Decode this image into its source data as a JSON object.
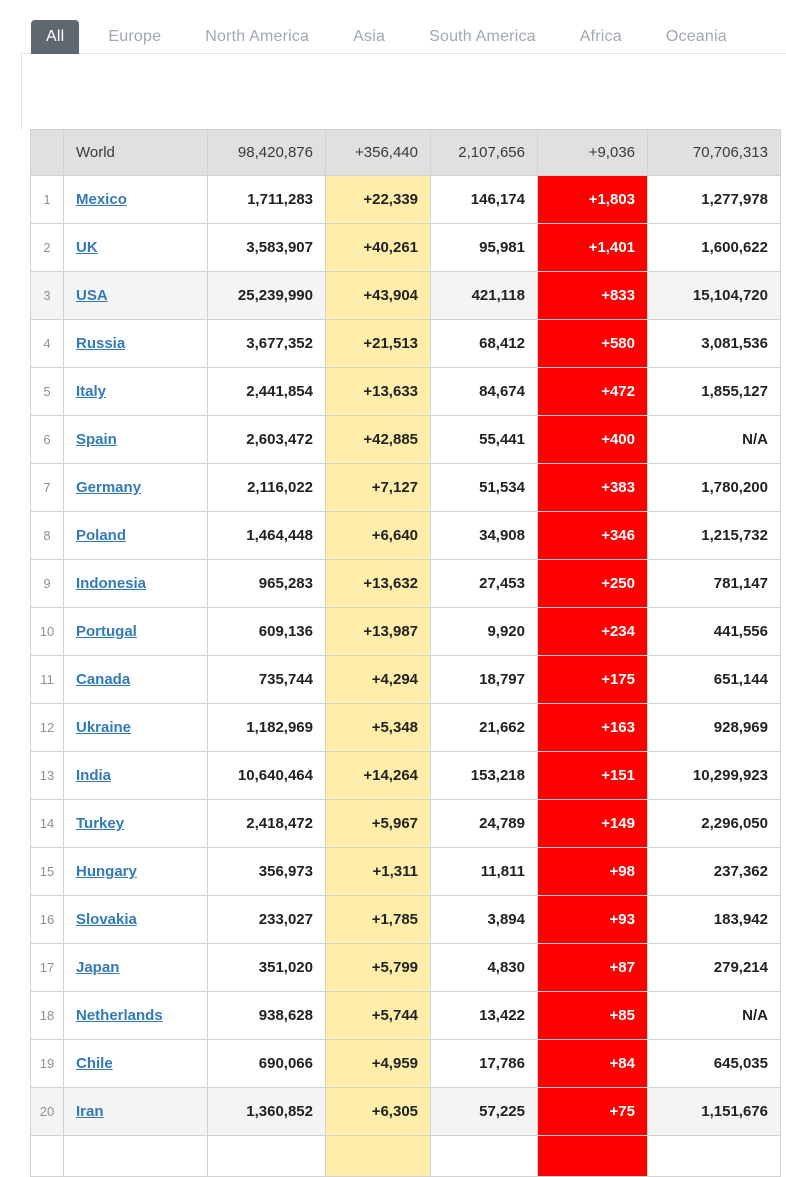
{
  "tabs": [
    {
      "label": "All",
      "active": true
    },
    {
      "label": "Europe",
      "active": false
    },
    {
      "label": "North America",
      "active": false
    },
    {
      "label": "Asia",
      "active": false
    },
    {
      "label": "South America",
      "active": false
    },
    {
      "label": "Africa",
      "active": false
    },
    {
      "label": "Oceania",
      "active": false
    }
  ],
  "colors": {
    "active_tab_bg": "#5e6870",
    "inactive_tab_text": "#a1a8b0",
    "new_cases_bg": "#FFEEAA",
    "new_deaths_bg": "#FF0000",
    "world_row_bg": "#e0e0e0",
    "striped_row_bg": "#f4f4f4",
    "country_link": "#337ab7"
  },
  "table": {
    "columns": [
      "rank",
      "country",
      "total_cases",
      "new_cases",
      "total_deaths",
      "new_deaths",
      "total_recovered"
    ],
    "world": {
      "name": "World",
      "total_cases": "98,420,876",
      "new_cases": "+356,440",
      "total_deaths": "2,107,656",
      "new_deaths": "+9,036",
      "total_recovered": "70,706,313"
    },
    "rows": [
      {
        "rank": "1",
        "country": "Mexico",
        "total_cases": "1,711,283",
        "new_cases": "+22,339",
        "total_deaths": "146,174",
        "new_deaths": "+1,803",
        "total_recovered": "1,277,978",
        "striped": false
      },
      {
        "rank": "2",
        "country": "UK",
        "total_cases": "3,583,907",
        "new_cases": "+40,261",
        "total_deaths": "95,981",
        "new_deaths": "+1,401",
        "total_recovered": "1,600,622",
        "striped": false
      },
      {
        "rank": "3",
        "country": "USA",
        "total_cases": "25,239,990",
        "new_cases": "+43,904",
        "total_deaths": "421,118",
        "new_deaths": "+833",
        "total_recovered": "15,104,720",
        "striped": true
      },
      {
        "rank": "4",
        "country": "Russia",
        "total_cases": "3,677,352",
        "new_cases": "+21,513",
        "total_deaths": "68,412",
        "new_deaths": "+580",
        "total_recovered": "3,081,536",
        "striped": false
      },
      {
        "rank": "5",
        "country": "Italy",
        "total_cases": "2,441,854",
        "new_cases": "+13,633",
        "total_deaths": "84,674",
        "new_deaths": "+472",
        "total_recovered": "1,855,127",
        "striped": false
      },
      {
        "rank": "6",
        "country": "Spain",
        "total_cases": "2,603,472",
        "new_cases": "+42,885",
        "total_deaths": "55,441",
        "new_deaths": "+400",
        "total_recovered": "N/A",
        "striped": false
      },
      {
        "rank": "7",
        "country": "Germany",
        "total_cases": "2,116,022",
        "new_cases": "+7,127",
        "total_deaths": "51,534",
        "new_deaths": "+383",
        "total_recovered": "1,780,200",
        "striped": false
      },
      {
        "rank": "8",
        "country": "Poland",
        "total_cases": "1,464,448",
        "new_cases": "+6,640",
        "total_deaths": "34,908",
        "new_deaths": "+346",
        "total_recovered": "1,215,732",
        "striped": false
      },
      {
        "rank": "9",
        "country": "Indonesia",
        "total_cases": "965,283",
        "new_cases": "+13,632",
        "total_deaths": "27,453",
        "new_deaths": "+250",
        "total_recovered": "781,147",
        "striped": false
      },
      {
        "rank": "10",
        "country": "Portugal",
        "total_cases": "609,136",
        "new_cases": "+13,987",
        "total_deaths": "9,920",
        "new_deaths": "+234",
        "total_recovered": "441,556",
        "striped": false
      },
      {
        "rank": "11",
        "country": "Canada",
        "total_cases": "735,744",
        "new_cases": "+4,294",
        "total_deaths": "18,797",
        "new_deaths": "+175",
        "total_recovered": "651,144",
        "striped": false
      },
      {
        "rank": "12",
        "country": "Ukraine",
        "total_cases": "1,182,969",
        "new_cases": "+5,348",
        "total_deaths": "21,662",
        "new_deaths": "+163",
        "total_recovered": "928,969",
        "striped": false
      },
      {
        "rank": "13",
        "country": "India",
        "total_cases": "10,640,464",
        "new_cases": "+14,264",
        "total_deaths": "153,218",
        "new_deaths": "+151",
        "total_recovered": "10,299,923",
        "striped": false
      },
      {
        "rank": "14",
        "country": "Turkey",
        "total_cases": "2,418,472",
        "new_cases": "+5,967",
        "total_deaths": "24,789",
        "new_deaths": "+149",
        "total_recovered": "2,296,050",
        "striped": false
      },
      {
        "rank": "15",
        "country": "Hungary",
        "total_cases": "356,973",
        "new_cases": "+1,311",
        "total_deaths": "11,811",
        "new_deaths": "+98",
        "total_recovered": "237,362",
        "striped": false
      },
      {
        "rank": "16",
        "country": "Slovakia",
        "total_cases": "233,027",
        "new_cases": "+1,785",
        "total_deaths": "3,894",
        "new_deaths": "+93",
        "total_recovered": "183,942",
        "striped": false
      },
      {
        "rank": "17",
        "country": "Japan",
        "total_cases": "351,020",
        "new_cases": "+5,799",
        "total_deaths": "4,830",
        "new_deaths": "+87",
        "total_recovered": "279,214",
        "striped": false
      },
      {
        "rank": "18",
        "country": "Netherlands",
        "total_cases": "938,628",
        "new_cases": "+5,744",
        "total_deaths": "13,422",
        "new_deaths": "+85",
        "total_recovered": "N/A",
        "striped": false
      },
      {
        "rank": "19",
        "country": "Chile",
        "total_cases": "690,066",
        "new_cases": "+4,959",
        "total_deaths": "17,786",
        "new_deaths": "+84",
        "total_recovered": "645,035",
        "striped": false
      },
      {
        "rank": "20",
        "country": "Iran",
        "total_cases": "1,360,852",
        "new_cases": "+6,305",
        "total_deaths": "57,225",
        "new_deaths": "+75",
        "total_recovered": "1,151,676",
        "striped": true
      }
    ]
  }
}
